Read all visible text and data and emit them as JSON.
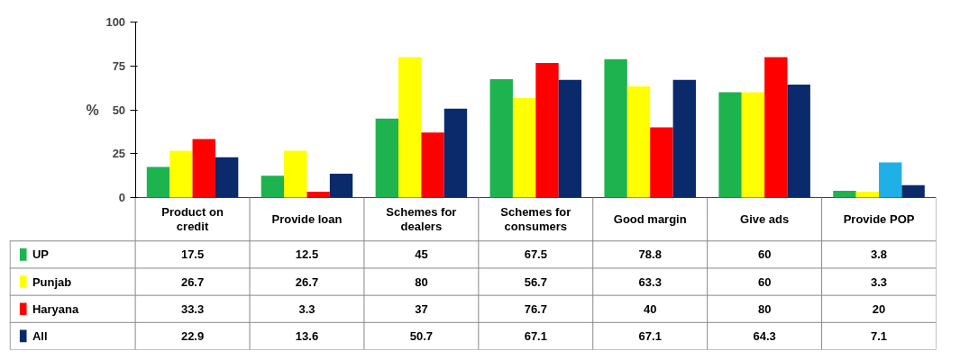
{
  "chart_data": {
    "type": "bar",
    "ylabel": "%",
    "categories": [
      "Product on credit",
      "Provide loan",
      "Schemes for dealers",
      "Schemes for consumers",
      "Good margin",
      "Give ads",
      "Provide POP"
    ],
    "series": [
      {
        "name": "UP",
        "color": "#1db34f",
        "values": [
          17.5,
          12.5,
          45,
          67.5,
          78.8,
          60,
          3.8
        ]
      },
      {
        "name": "Punjab",
        "color": "#ffff00",
        "values": [
          26.7,
          26.7,
          80,
          56.7,
          63.3,
          60,
          3.3
        ]
      },
      {
        "name": "Haryana",
        "color": "#ff0000",
        "colors": [
          "#ff0000",
          "#ff0000",
          "#ff0000",
          "#ff0000",
          "#ff0000",
          "#ff0000",
          "#1fb0e8"
        ],
        "values": [
          33.3,
          3.3,
          37,
          76.7,
          40,
          80,
          20
        ]
      },
      {
        "name": "All",
        "color": "#0a2a6b",
        "values": [
          22.9,
          13.6,
          50.7,
          67.1,
          67.1,
          64.3,
          7.1
        ]
      }
    ],
    "ylim": [
      0,
      100
    ],
    "yticks": [
      0,
      25,
      50,
      75,
      100
    ],
    "grid": false,
    "legend": "bottom left",
    "data_labels": true
  }
}
